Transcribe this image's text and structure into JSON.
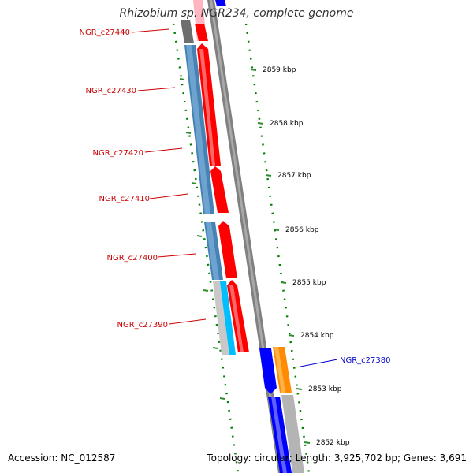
{
  "title": "Rhizobium sp. NGR234, complete genome",
  "footer": {
    "accession": "Accession: NC_012587",
    "summary": "Topology: circular; Length: 3,925,702 bp; Genes: 3,691"
  },
  "colors": {
    "forward_cds": "#ff0000",
    "reverse_cds_blue": "#0000ff",
    "steel_blue_track": "#4682b4",
    "cyan_track": "#00bfff",
    "orange_track": "#ff8c00",
    "backbone": "#808080",
    "gc_dots": "#008000",
    "label_red": "#cc0000",
    "label_blue": "#0000cc"
  },
  "gene_labels": [
    {
      "name": "NGR_c27440",
      "color": "red"
    },
    {
      "name": "NGR_c27430",
      "color": "red"
    },
    {
      "name": "NGR_c27420",
      "color": "red"
    },
    {
      "name": "NGR_c27410",
      "color": "red"
    },
    {
      "name": "NGR_c27400",
      "color": "red"
    },
    {
      "name": "NGR_c27390",
      "color": "red"
    },
    {
      "name": "NGR_c27380",
      "color": "blue"
    }
  ],
  "scale_ticks": [
    {
      "label": "2859 kbp"
    },
    {
      "label": "2858 kbp"
    },
    {
      "label": "2857 kbp"
    },
    {
      "label": "2856 kbp"
    },
    {
      "label": "2855 kbp"
    },
    {
      "label": "2854 kbp"
    },
    {
      "label": "2853 kbp"
    },
    {
      "label": "2852 kbp"
    }
  ]
}
